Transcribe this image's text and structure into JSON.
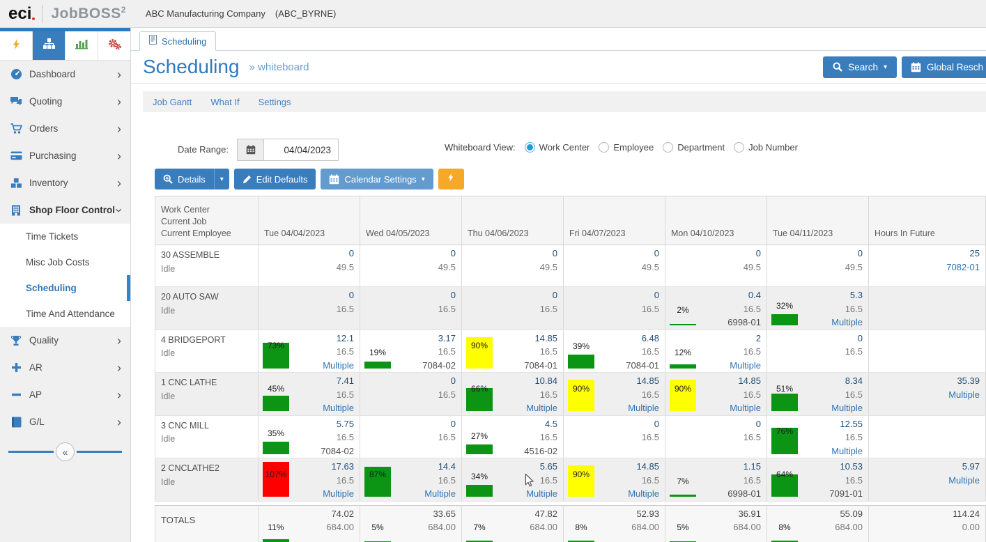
{
  "header": {
    "logo_eci": "eci",
    "logo_product": "JobBOSS",
    "logo_sup": "2",
    "company": "ABC Manufacturing Company",
    "company_code": "(ABC_BYRNE)"
  },
  "colors": {
    "accent": "#3a7dbd",
    "green": "#0c9414",
    "yellow": "#ffff00",
    "red": "#fe0000",
    "orange": "#f6a829"
  },
  "sidebar": {
    "items": [
      {
        "label": "Dashboard",
        "icon": "dashboard",
        "chevron": "right"
      },
      {
        "label": "Quoting",
        "icon": "quoting",
        "chevron": "right"
      },
      {
        "label": "Orders",
        "icon": "orders",
        "chevron": "right"
      },
      {
        "label": "Purchasing",
        "icon": "purchasing",
        "chevron": "right"
      },
      {
        "label": "Inventory",
        "icon": "inventory",
        "chevron": "right"
      },
      {
        "label": "Shop Floor Control",
        "icon": "shopfloor",
        "chevron": "down",
        "bold": true
      },
      {
        "label": "Time Tickets",
        "sub": true
      },
      {
        "label": "Misc Job Costs",
        "sub": true
      },
      {
        "label": "Scheduling",
        "sub": true,
        "active": true
      },
      {
        "label": "Time And Attendance",
        "sub": true
      },
      {
        "label": "Quality",
        "icon": "quality",
        "chevron": "right"
      },
      {
        "label": "AR",
        "icon": "ar",
        "chevron": "right"
      },
      {
        "label": "AP",
        "icon": "ap",
        "chevron": "right"
      },
      {
        "label": "G/L",
        "icon": "gl",
        "chevron": "right"
      }
    ]
  },
  "tab": {
    "label": "Scheduling"
  },
  "page": {
    "title": "Scheduling",
    "subtitle": "» whiteboard",
    "search_label": "Search",
    "global_label": "Global Resch"
  },
  "subnav": [
    "Job Gantt",
    "What If",
    "Settings"
  ],
  "controls": {
    "date_label": "Date Range:",
    "date_value": "04/04/2023",
    "view_label": "Whiteboard View:",
    "radios": [
      {
        "label": "Work Center",
        "selected": true
      },
      {
        "label": "Employee",
        "selected": false
      },
      {
        "label": "Department",
        "selected": false
      },
      {
        "label": "Job Number",
        "selected": false
      }
    ],
    "details_label": "Details",
    "edit_defaults_label": "Edit Defaults",
    "calendar_settings_label": "Calendar Settings"
  },
  "table": {
    "corner_header": [
      "Work Center",
      "Current Job",
      "Current Employee"
    ],
    "day_headers": [
      "Tue 04/04/2023",
      "Wed 04/05/2023",
      "Thu 04/06/2023",
      "Fri 04/07/2023",
      "Mon 04/10/2023",
      "Tue 04/11/2023"
    ],
    "future_header": "Hours In Future",
    "rows": [
      {
        "name": "30 ASSEMBLE",
        "status": "Idle",
        "days": [
          {
            "lines": [
              "0",
              "49.5"
            ]
          },
          {
            "lines": [
              "0",
              "49.5"
            ]
          },
          {
            "lines": [
              "0",
              "49.5"
            ]
          },
          {
            "lines": [
              "0",
              "49.5"
            ]
          },
          {
            "lines": [
              "0",
              "49.5"
            ]
          },
          {
            "lines": [
              "0",
              "49.5"
            ]
          }
        ],
        "future": [
          "25",
          "7082-01"
        ]
      },
      {
        "name": "20 AUTO SAW",
        "status": "Idle",
        "days": [
          {
            "lines": [
              "0",
              "16.5"
            ]
          },
          {
            "lines": [
              "0",
              "16.5"
            ]
          },
          {
            "lines": [
              "0",
              "16.5"
            ]
          },
          {
            "lines": [
              "0",
              "16.5"
            ]
          },
          {
            "pct": 2,
            "color": "green",
            "lines": [
              "0.4",
              "16.5",
              "6998-01"
            ]
          },
          {
            "pct": 32,
            "color": "green",
            "lines": [
              "5.3",
              "16.5",
              "Multiple"
            ]
          }
        ],
        "future": null
      },
      {
        "name": "4 BRIDGEPORT",
        "status": "Idle",
        "days": [
          {
            "pct": 73,
            "color": "green",
            "lines": [
              "12.1",
              "16.5",
              "Multiple"
            ]
          },
          {
            "pct": 19,
            "color": "green",
            "lines": [
              "3.17",
              "16.5",
              "7084-02"
            ]
          },
          {
            "pct": 90,
            "color": "yellow",
            "lines": [
              "14.85",
              "16.5",
              "7084-01"
            ]
          },
          {
            "pct": 39,
            "color": "green",
            "lines": [
              "6.48",
              "16.5",
              "7084-01"
            ]
          },
          {
            "pct": 12,
            "color": "green",
            "lines": [
              "2",
              "16.5",
              "Multiple"
            ]
          },
          {
            "lines": [
              "0",
              "16.5"
            ]
          }
        ],
        "future": null
      },
      {
        "name": "1 CNC LATHE",
        "status": "Idle",
        "days": [
          {
            "pct": 45,
            "color": "green",
            "lines": [
              "7.41",
              "16.5",
              "Multiple"
            ]
          },
          {
            "lines": [
              "0",
              "16.5"
            ]
          },
          {
            "pct": 66,
            "color": "green",
            "lines": [
              "10.84",
              "16.5",
              "Multiple"
            ]
          },
          {
            "pct": 90,
            "color": "yellow",
            "lines": [
              "14.85",
              "16.5",
              "Multiple"
            ]
          },
          {
            "pct": 90,
            "color": "yellow",
            "lines": [
              "14.85",
              "16.5",
              "Multiple"
            ]
          },
          {
            "pct": 51,
            "color": "green",
            "lines": [
              "8.34",
              "16.5",
              "Multiple"
            ]
          }
        ],
        "future": [
          "35.39",
          "Multiple"
        ]
      },
      {
        "name": "3 CNC MILL",
        "status": "Idle",
        "days": [
          {
            "pct": 35,
            "color": "green",
            "lines": [
              "5.75",
              "16.5",
              "7084-02"
            ]
          },
          {
            "lines": [
              "0",
              "16.5"
            ]
          },
          {
            "pct": 27,
            "color": "green",
            "lines": [
              "4.5",
              "16.5",
              "4516-02"
            ]
          },
          {
            "lines": [
              "0",
              "16.5"
            ]
          },
          {
            "lines": [
              "0",
              "16.5"
            ]
          },
          {
            "pct": 76,
            "color": "green",
            "lines": [
              "12.55",
              "16.5",
              "Multiple"
            ]
          }
        ],
        "future": null
      },
      {
        "name": "2 CNCLATHE2",
        "status": "Idle",
        "days": [
          {
            "pct": 107,
            "color": "red",
            "lines": [
              "17.63",
              "16.5",
              "Multiple"
            ]
          },
          {
            "pct": 87,
            "color": "green",
            "lines": [
              "14.4",
              "16.5",
              "Multiple"
            ]
          },
          {
            "pct": 34,
            "color": "green",
            "lines": [
              "5.65",
              "16.5",
              "Multiple"
            ]
          },
          {
            "pct": 90,
            "color": "yellow",
            "lines": [
              "14.85",
              "16.5",
              "Multiple"
            ]
          },
          {
            "pct": 7,
            "color": "green",
            "lines": [
              "1.15",
              "16.5",
              "6998-01"
            ]
          },
          {
            "pct": 64,
            "color": "green",
            "lines": [
              "10.53",
              "16.5",
              "7091-01"
            ]
          }
        ],
        "future": [
          "5.97",
          "Multiple"
        ]
      }
    ],
    "totals": {
      "label": "TOTALS",
      "days": [
        {
          "pct": 11,
          "color": "green",
          "lines": [
            "74.02",
            "684.00"
          ]
        },
        {
          "pct": 5,
          "color": "green",
          "lines": [
            "33.65",
            "684.00"
          ]
        },
        {
          "pct": 7,
          "color": "green",
          "lines": [
            "47.82",
            "684.00"
          ]
        },
        {
          "pct": 8,
          "color": "green",
          "lines": [
            "52.93",
            "684.00"
          ]
        },
        {
          "pct": 5,
          "color": "green",
          "lines": [
            "36.91",
            "684.00"
          ]
        },
        {
          "pct": 8,
          "color": "green",
          "lines": [
            "55.09",
            "684.00"
          ]
        }
      ],
      "future": [
        "114.24",
        "0.00"
      ]
    }
  }
}
